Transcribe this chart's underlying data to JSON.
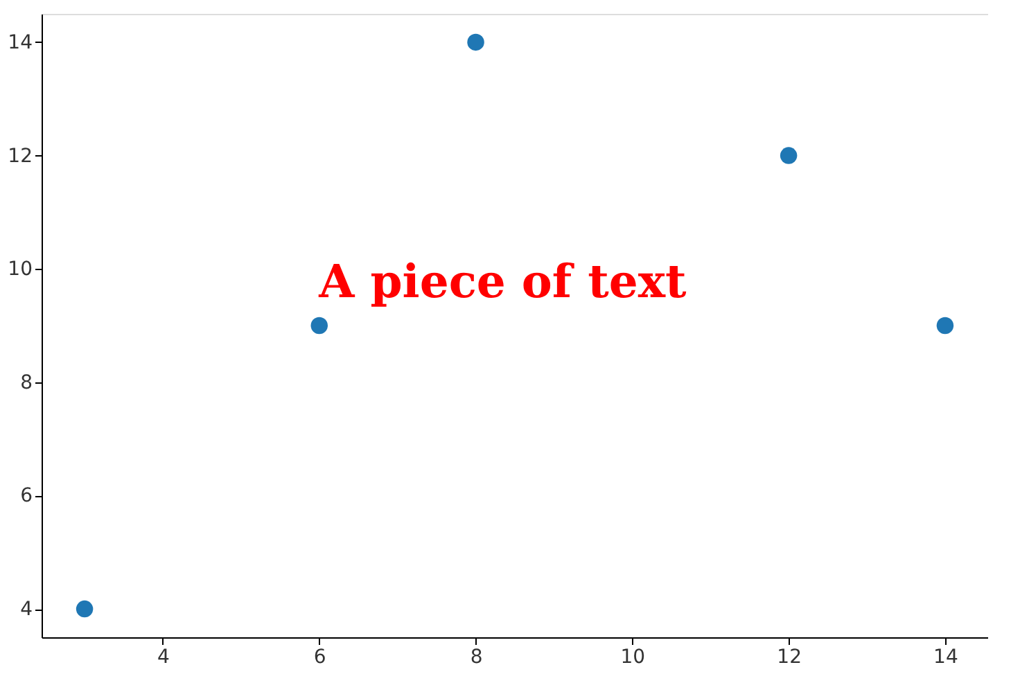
{
  "chart_data": {
    "type": "scatter",
    "x": [
      3,
      6,
      8,
      12,
      14
    ],
    "series": [
      {
        "color": "#1f77b4",
        "values": [
          4,
          9,
          14,
          12,
          9
        ]
      }
    ],
    "xlim": [
      2.45,
      14.55
    ],
    "xticks": [
      4,
      6,
      8,
      10,
      12,
      14
    ],
    "ylim": [
      3.5,
      14.5
    ],
    "yticks": [
      4,
      6,
      8,
      10,
      12,
      14
    ],
    "annotations": [
      "A piece of text"
    ],
    "marker": "circle",
    "grid": false
  }
}
